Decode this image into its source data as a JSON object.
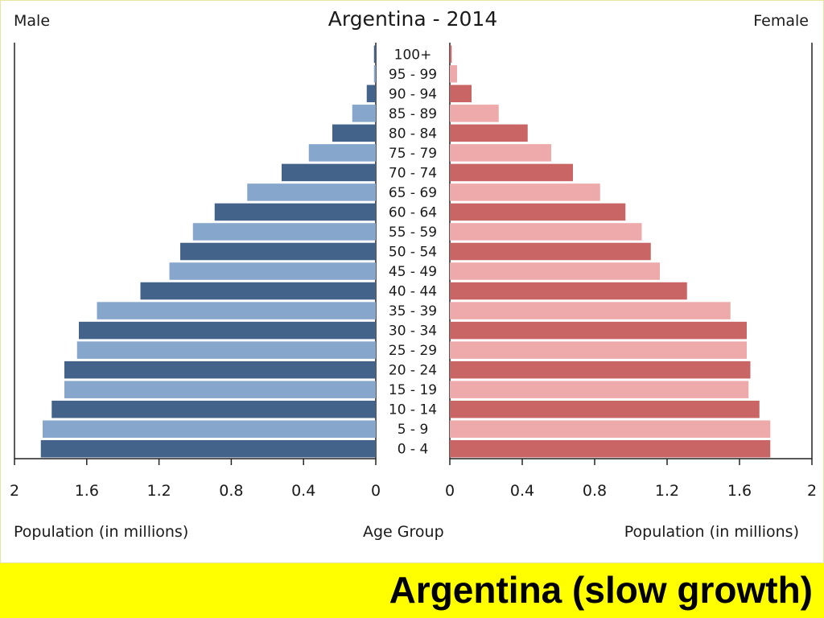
{
  "banner": {
    "text": "Argentina (slow growth)"
  },
  "chart_data": {
    "type": "bar",
    "subtype": "population-pyramid",
    "title": "Argentina - 2014",
    "left_label": "Male",
    "right_label": "Female",
    "xlabel_left": "Population (in millions)",
    "xlabel_center": "Age Group",
    "xlabel_right": "Population (in millions)",
    "xlim": [
      0,
      2
    ],
    "xticks": [
      "2",
      "1.6",
      "1.2",
      "0.8",
      "0.4",
      "0",
      "0",
      "0.4",
      "0.8",
      "1.2",
      "1.6",
      "2"
    ],
    "categories": [
      "100+",
      "95 - 99",
      "90 - 94",
      "85 - 89",
      "80 - 84",
      "75 - 79",
      "70 - 74",
      "65 - 69",
      "60 - 64",
      "55 - 59",
      "50 - 54",
      "45 - 49",
      "40 - 44",
      "35 - 39",
      "30 - 34",
      "25 - 29",
      "20 - 24",
      "15 - 19",
      "10 - 14",
      "5 - 9",
      "0 - 4"
    ],
    "series": [
      {
        "name": "Male",
        "values": [
          0.01,
          0.01,
          0.05,
          0.13,
          0.24,
          0.37,
          0.52,
          0.71,
          0.89,
          1.01,
          1.08,
          1.14,
          1.3,
          1.54,
          1.64,
          1.65,
          1.72,
          1.72,
          1.79,
          1.84,
          1.85
        ]
      },
      {
        "name": "Female",
        "values": [
          0.01,
          0.04,
          0.12,
          0.27,
          0.43,
          0.56,
          0.68,
          0.83,
          0.97,
          1.06,
          1.11,
          1.16,
          1.31,
          1.55,
          1.64,
          1.64,
          1.66,
          1.65,
          1.71,
          1.77,
          1.77
        ]
      }
    ],
    "colors": {
      "male_dark": "#44638a",
      "male_light": "#86a7cb",
      "female_dark": "#c96565",
      "female_light": "#eeaaaa",
      "axis": "#222222"
    },
    "grid": false
  }
}
